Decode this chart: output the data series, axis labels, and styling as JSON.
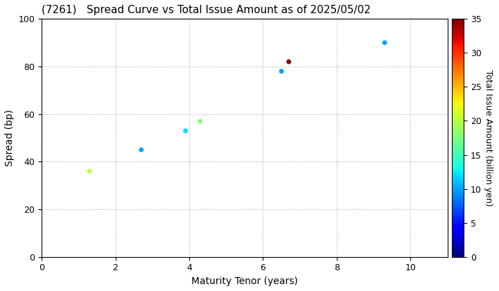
{
  "title": "(7261)   Spread Curve vs Total Issue Amount as of 2025/05/02",
  "xlabel": "Maturity Tenor (years)",
  "ylabel": "Spread (bp)",
  "colorbar_label": "Total Issue Amount (billion yen)",
  "xlim": [
    0,
    11
  ],
  "ylim": [
    0,
    100
  ],
  "xticks": [
    0,
    2,
    4,
    6,
    8,
    10
  ],
  "yticks": [
    0,
    20,
    40,
    60,
    80,
    100
  ],
  "colorbar_min": 0,
  "colorbar_max": 35,
  "colorbar_ticks": [
    0,
    5,
    10,
    15,
    20,
    25,
    30,
    35
  ],
  "scatter_x": [
    1.3,
    2.7,
    3.9,
    4.3,
    6.5,
    6.7,
    9.3
  ],
  "scatter_y": [
    36,
    45,
    53,
    57,
    78,
    82,
    90
  ],
  "scatter_color": [
    20,
    10,
    12,
    18,
    10,
    35,
    10
  ],
  "scatter_size": [
    25,
    25,
    25,
    25,
    25,
    25,
    25
  ],
  "cmap": "jet",
  "background_color": "#ffffff",
  "grid_color": "#aaaaaa",
  "title_fontsize": 11,
  "label_fontsize": 10,
  "tick_fontsize": 9,
  "colorbar_label_fontsize": 9
}
